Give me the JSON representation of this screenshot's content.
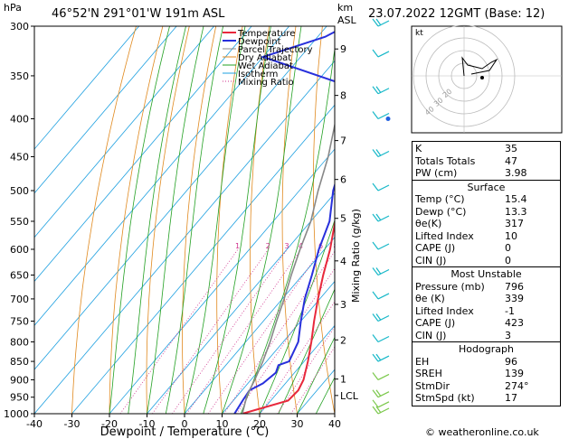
{
  "header": {
    "location": "46°52'N  291°01'W  191m  ASL",
    "datetime": "23.07.2022  12GMT  (Base: 12)",
    "hpa_label": "hPa",
    "km_label": "km",
    "asl_label": "ASL",
    "mixing_axis_label": "Mixing Ratio (g/kg)",
    "footer": "© weatheronline.co.uk"
  },
  "chart_data": {
    "type": "line",
    "title": "",
    "xlabel": "Dewpoint / Temperature (°C)",
    "ylabel": "hPa",
    "xlim": [
      -40,
      40
    ],
    "ylim": [
      1000,
      300
    ],
    "y_scale": "log",
    "pressure_ticks": [
      300,
      350,
      400,
      450,
      500,
      550,
      600,
      650,
      700,
      750,
      800,
      850,
      900,
      950,
      1000
    ],
    "temp_ticks": [
      -40,
      -30,
      -20,
      -10,
      0,
      10,
      20,
      30,
      40
    ],
    "km_ticks": [
      {
        "km": "9",
        "p": 322
      },
      {
        "km": "8",
        "p": 372
      },
      {
        "km": "7",
        "p": 428
      },
      {
        "km": "6",
        "p": 483
      },
      {
        "km": "5",
        "p": 545
      },
      {
        "km": "4",
        "p": 622
      },
      {
        "km": "3",
        "p": 712
      },
      {
        "km": "2",
        "p": 795
      },
      {
        "km": "1",
        "p": 898
      },
      {
        "km": "LCL",
        "p": 945
      }
    ],
    "mixing_ratio_labels": [
      "1",
      "2",
      "3",
      "4",
      "6",
      "8",
      "10",
      "15",
      "20",
      "25"
    ],
    "mixing_ratio_values": [
      1,
      2,
      3,
      4,
      6,
      8,
      10,
      15,
      20,
      25
    ],
    "legend": [
      "Temperature",
      "Dewpoint",
      "Parcel Trajectory",
      "Dry Adiabat",
      "Wet Adiabat",
      "Isotherm",
      "Mixing Ratio"
    ],
    "legend_position": "top-right",
    "series": [
      {
        "name": "Temperature",
        "color": "#e8283c",
        "points": [
          [
            1000,
            15.4
          ],
          [
            960,
            24.6
          ],
          [
            930,
            25
          ],
          [
            900,
            24
          ],
          [
            850,
            21
          ],
          [
            800,
            17.5
          ],
          [
            750,
            13.5
          ],
          [
            700,
            9.5
          ],
          [
            650,
            5.5
          ],
          [
            600,
            1.5
          ],
          [
            550,
            -3.5
          ],
          [
            520,
            -6
          ],
          [
            500,
            -8
          ],
          [
            450,
            -13
          ],
          [
            400,
            -19
          ],
          [
            350,
            -25
          ],
          [
            300,
            -32
          ]
        ]
      },
      {
        "name": "Dewpoint",
        "color": "#2830dc",
        "points": [
          [
            1000,
            13.3
          ],
          [
            960,
            12.5
          ],
          [
            930,
            12
          ],
          [
            910,
            14
          ],
          [
            880,
            15
          ],
          [
            860,
            14
          ],
          [
            850,
            16
          ],
          [
            800,
            14
          ],
          [
            750,
            10
          ],
          [
            700,
            6
          ],
          [
            650,
            2.5
          ],
          [
            600,
            -1.5
          ],
          [
            550,
            -5
          ],
          [
            500,
            -11
          ],
          [
            450,
            -16
          ],
          [
            420,
            -21
          ],
          [
            400,
            -21
          ],
          [
            380,
            -22
          ],
          [
            370,
            -23
          ],
          [
            330,
            -60
          ],
          [
            310,
            -48
          ],
          [
            300,
            -45
          ]
        ]
      },
      {
        "name": "Parcel Trajectory",
        "color": "#888888",
        "points": [
          [
            1000,
            15.4
          ],
          [
            945,
            12.5
          ],
          [
            900,
            11
          ],
          [
            850,
            9
          ],
          [
            800,
            6.5
          ],
          [
            750,
            3.5
          ],
          [
            700,
            0.5
          ],
          [
            650,
            -3
          ],
          [
            600,
            -6.5
          ],
          [
            550,
            -10
          ],
          [
            500,
            -15
          ],
          [
            450,
            -20
          ],
          [
            400,
            -26.5
          ],
          [
            350,
            -34
          ],
          [
            300,
            -43
          ]
        ]
      }
    ],
    "indices": [
      {
        "label": "K",
        "value": "35"
      },
      {
        "label": "Totals Totals",
        "value": "47"
      },
      {
        "label": "PW (cm)",
        "value": "3.98"
      }
    ],
    "surface_title": "Surface",
    "surface": [
      {
        "label": "Temp (°C)",
        "value": "15.4"
      },
      {
        "label": "Dewp (°C)",
        "value": "13.3"
      },
      {
        "label": "θe(K)",
        "value": "317"
      },
      {
        "label": "Lifted Index",
        "value": "10"
      },
      {
        "label": "CAPE (J)",
        "value": "0"
      },
      {
        "label": "CIN (J)",
        "value": "0"
      }
    ],
    "unstable_title": "Most Unstable",
    "unstable": [
      {
        "label": "Pressure (mb)",
        "value": "796"
      },
      {
        "label": "θe (K)",
        "value": "339"
      },
      {
        "label": "Lifted Index",
        "value": "-1"
      },
      {
        "label": "CAPE (J)",
        "value": "423"
      },
      {
        "label": "CIN (J)",
        "value": "3"
      }
    ],
    "hodo_title": "Hodograph",
    "hodograph": [
      {
        "label": "EH",
        "value": "96"
      },
      {
        "label": "SREH",
        "value": "139"
      },
      {
        "label": "StmDir",
        "value": "274°"
      },
      {
        "label": "StmSpd (kt)",
        "value": "17"
      }
    ],
    "hodo_label": "kt",
    "hodo_ring_labels": [
      "20",
      "30",
      "40"
    ]
  },
  "colors": {
    "temperature": "#e8283c",
    "dewpoint": "#2830dc",
    "parcel": "#888888",
    "dry_adiabat": "#e0891e",
    "wet_adiabat": "#22a022",
    "isotherm": "#1ea0e0",
    "mixing_ratio": "#d0308c",
    "wind_barb": "#16b8c8"
  }
}
